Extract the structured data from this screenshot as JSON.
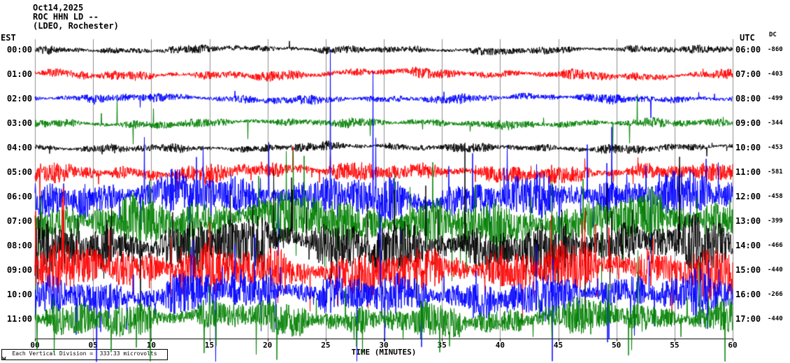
{
  "header": {
    "date": "Oct14,2025",
    "station": "ROC HHN LD --",
    "location": "(LDEO, Rochester)"
  },
  "axes": {
    "left_label": "EST",
    "right_label": "UTC",
    "dc_label": "DC",
    "x_label": "TIME (MINUTES)",
    "x_ticks": [
      "00",
      "05",
      "10",
      "15",
      "20",
      "25",
      "30",
      "35",
      "40",
      "45",
      "50",
      "55",
      "60"
    ]
  },
  "footer": {
    "scale_note": "Each Vertical Division =  333.33 microvolts",
    "watermark": "w"
  },
  "chart_data": {
    "type": "line",
    "title": "ROC HHN LD -- (LDEO, Rochester) helicorder record, Oct14,2025",
    "x_axis": {
      "label": "TIME (MINUTES)",
      "range_minutes": [
        0,
        60
      ],
      "tick_interval_minutes": 5
    },
    "grid_on": true,
    "grid_color": "#8f8f8f",
    "scale_microvolts_per_division": 333.33,
    "trace_color_cycle": [
      "#000000",
      "#ff0000",
      "#0000ff",
      "#008000"
    ],
    "rows": [
      {
        "est": "00:00",
        "utc": "06:00",
        "dc": "-860",
        "color": "#000000",
        "noise": "low",
        "amp": 5,
        "spike_p": 0.003,
        "spike_amp": 10,
        "wander": 2
      },
      {
        "est": "01:00",
        "utc": "07:00",
        "dc": "-403",
        "color": "#ff0000",
        "noise": "low",
        "amp": 6,
        "spike_p": 0.003,
        "spike_amp": 12,
        "wander": 3.5
      },
      {
        "est": "02:00",
        "utc": "08:00",
        "dc": "-499",
        "color": "#0000ff",
        "noise": "low",
        "amp": 5.5,
        "spike_p": 0.004,
        "spike_amp": 14,
        "wander": 2.5
      },
      {
        "est": "03:00",
        "utc": "09:00",
        "dc": "-344",
        "color": "#008000",
        "noise": "low-with-spikes",
        "amp": 5.5,
        "spike_p": 0.006,
        "spike_amp": 42,
        "wander": 2.5
      },
      {
        "est": "04:00",
        "utc": "10:00",
        "dc": "-453",
        "color": "#000000",
        "noise": "low",
        "amp": 5.5,
        "spike_p": 0.004,
        "spike_amp": 12,
        "wander": 2.5
      },
      {
        "est": "05:00",
        "utc": "11:00",
        "dc": "-581",
        "color": "#ff0000",
        "noise": "medium",
        "amp": 11,
        "spike_p": 0.02,
        "spike_amp": 30,
        "wander": 4
      },
      {
        "est": "06:00",
        "utc": "12:00",
        "dc": "-458",
        "color": "#0000ff",
        "noise": "high",
        "amp": 25,
        "spike_p": 0.03,
        "spike_amp": 85,
        "wander": 7
      },
      {
        "est": "07:00",
        "utc": "13:00",
        "dc": "-399",
        "color": "#008000",
        "noise": "high",
        "amp": 29,
        "spike_p": 0.03,
        "spike_amp": 88,
        "wander": 8
      },
      {
        "est": "08:00",
        "utc": "14:00",
        "dc": "-466",
        "color": "#000000",
        "noise": "high",
        "amp": 31,
        "spike_p": 0.035,
        "spike_amp": 80,
        "wander": 8
      },
      {
        "est": "09:00",
        "utc": "15:00",
        "dc": "-440",
        "color": "#ff0000",
        "noise": "high",
        "amp": 29,
        "spike_p": 0.03,
        "spike_amp": 78,
        "wander": 7
      },
      {
        "est": "10:00",
        "utc": "16:00",
        "dc": "-266",
        "color": "#0000ff",
        "noise": "high",
        "amp": 25,
        "spike_p": 0.03,
        "spike_amp": 85,
        "wander": 7
      },
      {
        "est": "11:00",
        "utc": "17:00",
        "dc": "-440",
        "color": "#008000",
        "noise": "high",
        "amp": 21,
        "spike_p": 0.025,
        "spike_amp": 62,
        "wander": 6
      }
    ]
  }
}
